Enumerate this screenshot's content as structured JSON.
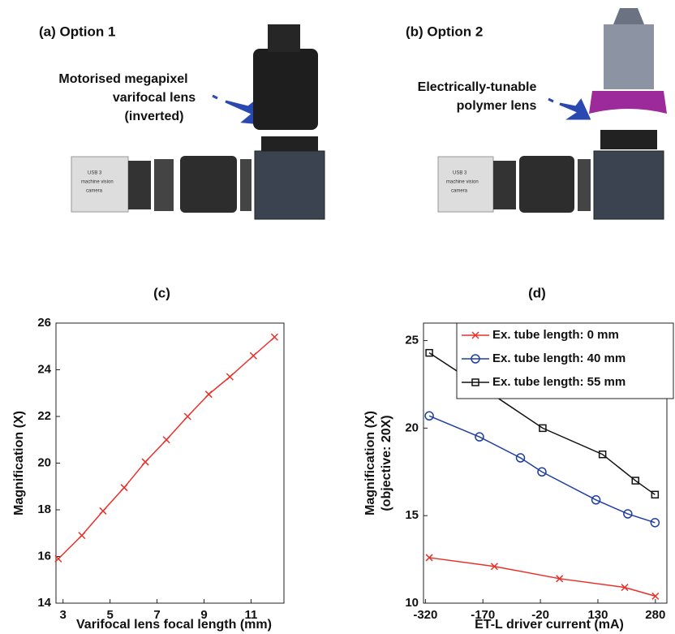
{
  "illustration": {
    "a": {
      "label": "(a) Option 1",
      "callout": [
        "Motorised megapixel",
        "varifocal lens",
        "(inverted)"
      ],
      "camera": [
        "USB 3",
        "machine vision",
        "camera"
      ]
    },
    "b": {
      "label": "(b) Option 2",
      "callout": [
        "Electrically-tunable",
        "polymer lens"
      ],
      "camera": [
        "USB 3",
        "machine vision",
        "camera"
      ]
    }
  },
  "chart_data": [
    {
      "type": "line",
      "title": "(c)",
      "x_label": "Varifocal lens focal length (mm)",
      "y_label": [
        "Magnification (X)"
      ],
      "x": [
        2.8,
        3.8,
        4.7,
        5.6,
        6.5,
        7.4,
        8.3,
        9.2,
        10.1,
        11.1,
        12.0
      ],
      "series": [
        {
          "name": null,
          "color": "#e8302a",
          "marker": "x",
          "x": [
            2.8,
            3.8,
            4.7,
            5.6,
            6.5,
            7.4,
            8.3,
            9.2,
            10.1,
            11.1,
            12.0
          ],
          "values": [
            15.9,
            16.9,
            17.95,
            18.95,
            20.05,
            21.0,
            22.0,
            22.95,
            23.7,
            24.6,
            25.4
          ]
        }
      ],
      "xlim": [
        2.7,
        12.4
      ],
      "xticks": [
        3,
        5,
        7,
        9,
        11
      ],
      "ylim": [
        14,
        26
      ],
      "yticks": [
        14,
        16,
        18,
        20,
        22,
        24,
        26
      ]
    },
    {
      "type": "line",
      "title": "(d)",
      "x_label": "ET-L driver current (mA)",
      "y_label": [
        "Magnification (X)",
        "(objective: 20X)"
      ],
      "series": [
        {
          "name": "Ex. tube length: 0 mm",
          "color": "#e8302a",
          "marker": "x",
          "x": [
            -310,
            -140,
            30,
            200,
            280
          ],
          "values": [
            12.6,
            12.1,
            11.4,
            10.9,
            10.4
          ]
        },
        {
          "name": "Ex. tube length: 40 mm",
          "color": "#1f3fa0",
          "marker": "o",
          "x": [
            -310,
            -179,
            -72,
            -16,
            125,
            208,
            279
          ],
          "values": [
            20.7,
            19.5,
            18.3,
            17.5,
            15.9,
            15.1,
            14.6
          ]
        },
        {
          "name": "Ex. tube length: 55 mm",
          "color": "#111111",
          "marker": "s",
          "x": [
            -310,
            -164,
            -14,
            142,
            228,
            279
          ],
          "values": [
            24.3,
            22.2,
            20.0,
            18.5,
            17.0,
            16.2
          ]
        }
      ],
      "xlim": [
        -325,
        310
      ],
      "xticks": [
        -320,
        -170,
        -20,
        130,
        280
      ],
      "ylim": [
        10,
        26
      ],
      "yticks": [
        10,
        15,
        20,
        25
      ],
      "legend": "upper right"
    }
  ]
}
